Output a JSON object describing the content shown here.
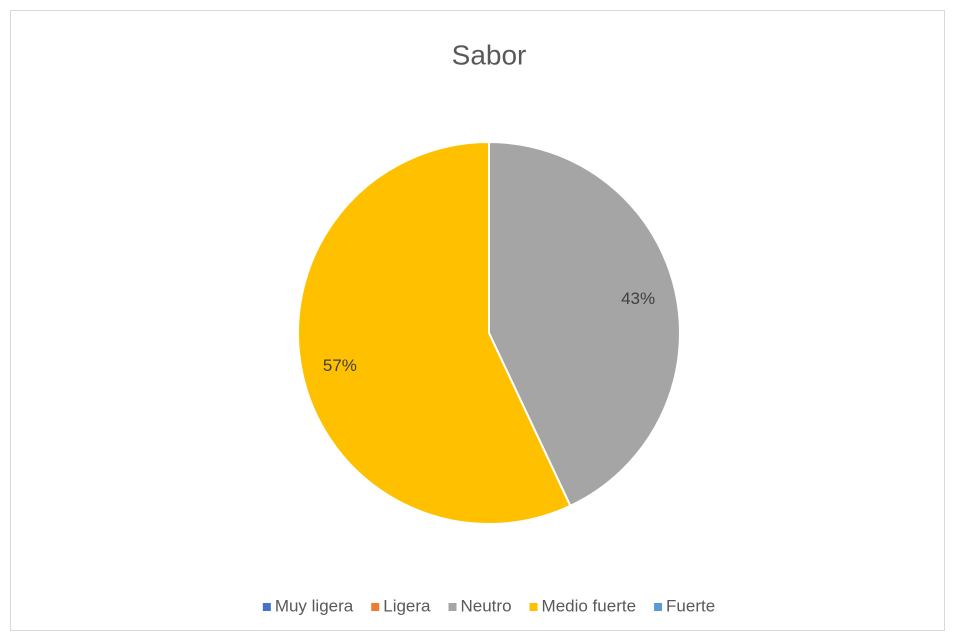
{
  "chart_data": {
    "type": "pie",
    "title": "Sabor",
    "categories": [
      "Muy ligera",
      "Ligera",
      "Neutro",
      "Medio fuerte",
      "Fuerte"
    ],
    "values": [
      0,
      0,
      43,
      57,
      0
    ],
    "value_labels": [
      null,
      null,
      "43%",
      "57%",
      null
    ],
    "colors": [
      "#4472c4",
      "#ed7d31",
      "#a5a5a5",
      "#ffc000",
      "#5b9bd5"
    ],
    "legend": "bottom"
  }
}
